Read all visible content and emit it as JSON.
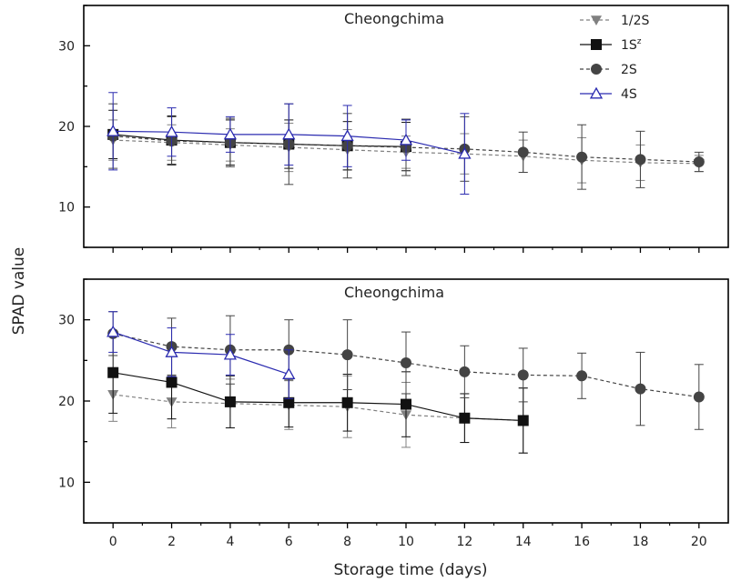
{
  "figure": {
    "ylabel": "SPAD value",
    "xlabel": "Storage time (days)",
    "x_ticks": [
      0,
      2,
      4,
      6,
      8,
      10,
      12,
      14,
      16,
      18,
      20
    ],
    "legend": [
      {
        "key": "half",
        "label": "1/2S",
        "sup": ""
      },
      {
        "key": "one",
        "label": "1S",
        "sup": "z"
      },
      {
        "key": "two",
        "label": "2S",
        "sup": ""
      },
      {
        "key": "four",
        "label": "4S",
        "sup": ""
      }
    ]
  },
  "chart_data": [
    {
      "type": "line",
      "title": "Cheongchima",
      "xlim": [
        -1,
        21
      ],
      "ylim": [
        5,
        35
      ],
      "y_ticks": [
        10,
        20,
        30
      ],
      "series": [
        {
          "key": "half",
          "name": "1/2S",
          "color": "#808080",
          "marker": "triangle-down",
          "dash": "dashed",
          "x": [
            0,
            2,
            4,
            6,
            8,
            10,
            12,
            14,
            16,
            18,
            20
          ],
          "y": [
            18.3,
            18.0,
            17.7,
            17.4,
            17.1,
            16.8,
            16.6,
            16.3,
            15.8,
            15.5,
            15.4
          ],
          "err": [
            2.5,
            2.2,
            2.0,
            3.0,
            2.5,
            2.0,
            2.5,
            2.0,
            2.8,
            2.2,
            1.0
          ]
        },
        {
          "key": "one",
          "name": "1S",
          "color": "#111111",
          "marker": "square",
          "dash": "solid",
          "x": [
            0,
            2,
            4,
            6,
            8,
            10
          ],
          "y": [
            19.0,
            18.3,
            18.0,
            17.8,
            17.6,
            17.5
          ],
          "err": [
            3.0,
            3.0,
            2.8,
            3.0,
            3.0,
            3.0
          ]
        },
        {
          "key": "two",
          "name": "2S",
          "color": "#444444",
          "marker": "circle",
          "dash": "dashed",
          "x": [
            0,
            2,
            4,
            6,
            8,
            10,
            12,
            14,
            16,
            18,
            20
          ],
          "y": [
            18.8,
            18.2,
            18.0,
            17.8,
            17.6,
            17.4,
            17.2,
            16.8,
            16.2,
            15.9,
            15.6
          ],
          "err": [
            4.0,
            3.0,
            3.0,
            5.0,
            4.0,
            3.5,
            4.0,
            2.5,
            4.0,
            3.5,
            1.2
          ]
        },
        {
          "key": "four",
          "name": "4S",
          "color": "#2b2bb0",
          "marker": "triangle-up",
          "dash": "solid",
          "x": [
            0,
            2,
            4,
            6,
            8,
            10,
            12
          ],
          "y": [
            19.4,
            19.3,
            19.0,
            19.0,
            18.8,
            18.3,
            16.6
          ],
          "err": [
            4.8,
            3.0,
            2.2,
            3.8,
            3.8,
            2.5,
            5.0
          ]
        }
      ]
    },
    {
      "type": "line",
      "title": "Cheongchima",
      "xlim": [
        -1,
        21
      ],
      "ylim": [
        5,
        35
      ],
      "y_ticks": [
        10,
        20,
        30
      ],
      "series": [
        {
          "key": "half",
          "name": "1/2S",
          "color": "#808080",
          "marker": "triangle-down",
          "dash": "dashed",
          "x": [
            0,
            2,
            4,
            6,
            8,
            10,
            12,
            14
          ],
          "y": [
            20.8,
            19.9,
            19.7,
            19.5,
            19.3,
            18.3,
            17.9,
            17.6
          ],
          "err": [
            3.3,
            3.2,
            3.0,
            3.0,
            3.8,
            4.0,
            3.0,
            4.0
          ]
        },
        {
          "key": "one",
          "name": "1S",
          "color": "#111111",
          "marker": "square",
          "dash": "solid",
          "x": [
            0,
            2,
            4,
            6,
            8,
            10,
            12,
            14
          ],
          "y": [
            23.5,
            22.3,
            19.9,
            19.8,
            19.8,
            19.6,
            17.9,
            17.6
          ],
          "err": [
            5.0,
            4.5,
            3.2,
            3.0,
            3.5,
            4.0,
            3.0,
            4.0
          ]
        },
        {
          "key": "two",
          "name": "2S",
          "color": "#444444",
          "marker": "circle",
          "dash": "dashed",
          "x": [
            0,
            2,
            4,
            6,
            8,
            10,
            12,
            14,
            16,
            18,
            20
          ],
          "y": [
            28.3,
            26.7,
            26.3,
            26.3,
            25.7,
            24.7,
            23.6,
            23.2,
            23.1,
            21.5,
            20.5
          ],
          "err": [
            2.7,
            3.5,
            4.2,
            3.7,
            4.3,
            3.8,
            3.2,
            3.3,
            2.8,
            4.5,
            4.0
          ]
        },
        {
          "key": "four",
          "name": "4S",
          "color": "#2b2bb0",
          "marker": "triangle-up",
          "dash": "solid",
          "x": [
            0,
            2,
            4,
            6
          ],
          "y": [
            28.5,
            26.0,
            25.7,
            23.3
          ],
          "err": [
            2.5,
            3.0,
            2.5,
            3.0
          ]
        }
      ]
    }
  ]
}
